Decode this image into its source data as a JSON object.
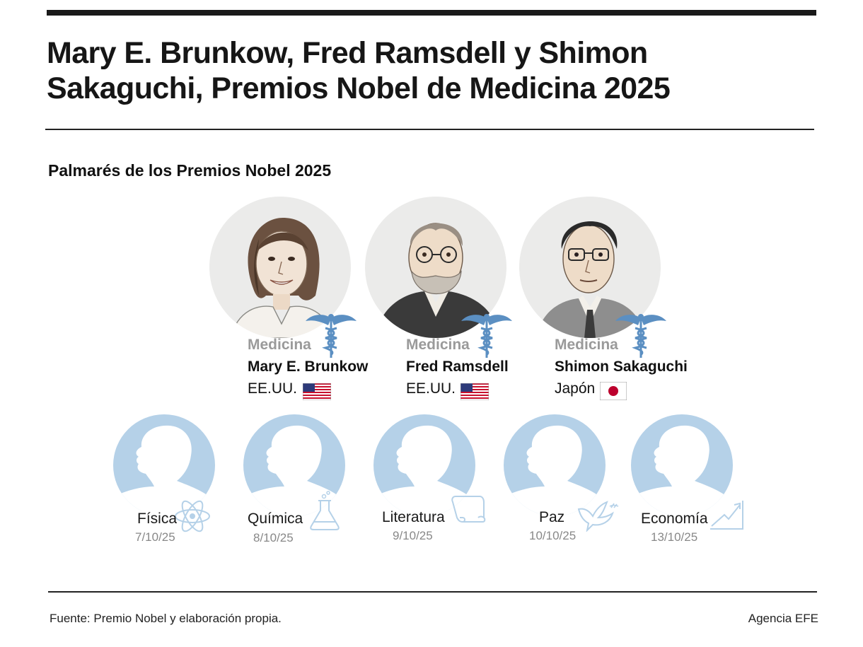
{
  "headline": {
    "line1": "Mary E. Brunkow, Fred Ramsdell y Shimon",
    "line2": "Sakaguchi, Premios Nobel de Medicina 2025"
  },
  "subheading": "Palmarés de los Premios Nobel 2025",
  "laureates": [
    {
      "category": "Medicina",
      "name": "Mary E. Brunkow",
      "country": "EE.UU.",
      "flag": "usa-flag-icon",
      "category_icon": "caduceus-icon"
    },
    {
      "category": "Medicina",
      "name": "Fred Ramsdell",
      "country": "EE.UU.",
      "flag": "usa-flag-icon",
      "category_icon": "caduceus-icon"
    },
    {
      "category": "Medicina",
      "name": "Shimon Sakaguchi",
      "country": "Japón",
      "flag": "japan-flag-icon",
      "category_icon": "caduceus-icon"
    }
  ],
  "prizes": [
    {
      "name": "Física",
      "date": "7/10/25",
      "icon": "atom-icon"
    },
    {
      "name": "Química",
      "date": "8/10/25",
      "icon": "flask-icon"
    },
    {
      "name": "Literatura",
      "date": "9/10/25",
      "icon": "scroll-icon"
    },
    {
      "name": "Paz",
      "date": "10/10/25",
      "icon": "dove-icon"
    },
    {
      "name": "Economía",
      "date": "13/10/25",
      "icon": "growth-chart-icon"
    }
  ],
  "footer": {
    "source": "Fuente: Premio Nobel y elaboración propia.",
    "agency": "Agencia EFE"
  },
  "colors": {
    "silhouette_bg": "#b5d1e8",
    "caduceus": "#5b8fc2",
    "category_text": "#9a9a9a",
    "date_text": "#888888",
    "rule": "#1a1a1a"
  }
}
